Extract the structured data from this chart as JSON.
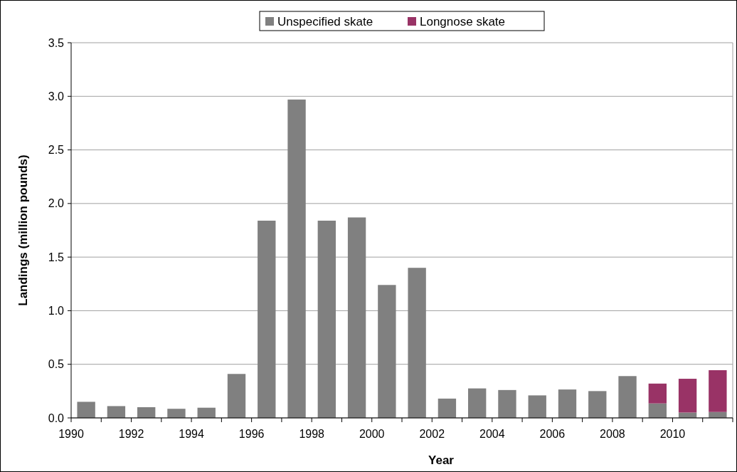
{
  "chart_data": {
    "type": "bar",
    "stacked": true,
    "xlabel": "Year",
    "ylabel": "Landings (million pounds)",
    "categories": [
      "1990",
      null,
      "1992",
      null,
      "1994",
      null,
      "1996",
      null,
      "1998",
      null,
      "2000",
      null,
      "2002",
      null,
      "2004",
      null,
      "2006",
      null,
      "2008",
      null,
      "2010",
      null
    ],
    "series": [
      {
        "name": "Unspecified skate",
        "color": "#808080",
        "values": [
          0.15,
          0.11,
          0.1,
          0.085,
          0.095,
          0.41,
          1.84,
          2.97,
          1.84,
          1.87,
          1.24,
          1.4,
          0.18,
          0.275,
          0.26,
          0.21,
          0.265,
          0.25,
          0.39,
          0.135,
          0.05,
          0.055
        ]
      },
      {
        "name": "Longnose skate",
        "color": "#993366",
        "values": [
          null,
          null,
          null,
          null,
          null,
          null,
          null,
          null,
          null,
          null,
          null,
          null,
          null,
          null,
          null,
          null,
          null,
          null,
          null,
          0.185,
          0.315,
          0.39
        ]
      }
    ],
    "ylim": [
      0,
      3.5
    ],
    "yticks": [
      {
        "value": 0,
        "label": "0.0"
      },
      {
        "value": 0.5,
        "label": "0.5"
      },
      {
        "value": 1,
        "label": "1.0"
      },
      {
        "value": 1.5,
        "label": "1.5"
      },
      {
        "value": 2,
        "label": "2.0"
      },
      {
        "value": 2.5,
        "label": "2.5"
      },
      {
        "value": 3,
        "label": "3.0"
      },
      {
        "value": 3.5,
        "label": "3.5"
      }
    ],
    "grid": "y",
    "legend": "top"
  }
}
